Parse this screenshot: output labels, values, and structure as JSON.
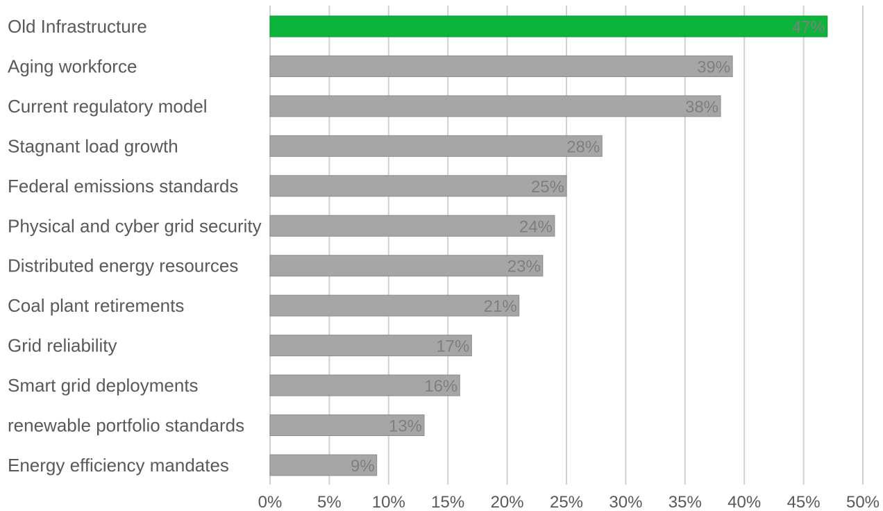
{
  "chart_data": {
    "type": "bar",
    "orientation": "horizontal",
    "categories": [
      "Old Infrastructure",
      "Aging workforce",
      "Current regulatory model",
      "Stagnant load growth",
      "Federal emissions standards",
      "Physical and cyber grid security",
      "Distributed energy resources",
      "Coal plant retirements",
      "Grid reliability",
      "Smart grid deployments",
      "renewable portfolio standards",
      "Energy efficiency mandates"
    ],
    "values": [
      47,
      39,
      38,
      28,
      25,
      24,
      23,
      21,
      17,
      16,
      13,
      9
    ],
    "data_labels": [
      "47%",
      "39%",
      "38%",
      "28%",
      "25%",
      "24%",
      "23%",
      "21%",
      "17%",
      "16%",
      "13%",
      "9%"
    ],
    "title": "",
    "xlabel": "",
    "ylabel": "",
    "xlim": [
      0,
      50
    ],
    "x_ticks": [
      0,
      5,
      10,
      15,
      20,
      25,
      30,
      35,
      40,
      45,
      50
    ],
    "x_tick_labels": [
      "0%",
      "5%",
      "10%",
      "15%",
      "20%",
      "25%",
      "30%",
      "35%",
      "40%",
      "45%",
      "50%"
    ],
    "grid": "vertical",
    "legend": "none",
    "colors": {
      "highlight": "#0db43c",
      "default": "#a6a6a6",
      "bar_border": "#8c8c8c",
      "grid": "#d0d0d0",
      "text": "#595959",
      "data_label": "#7f7f7f"
    },
    "highlight_index": 0
  }
}
